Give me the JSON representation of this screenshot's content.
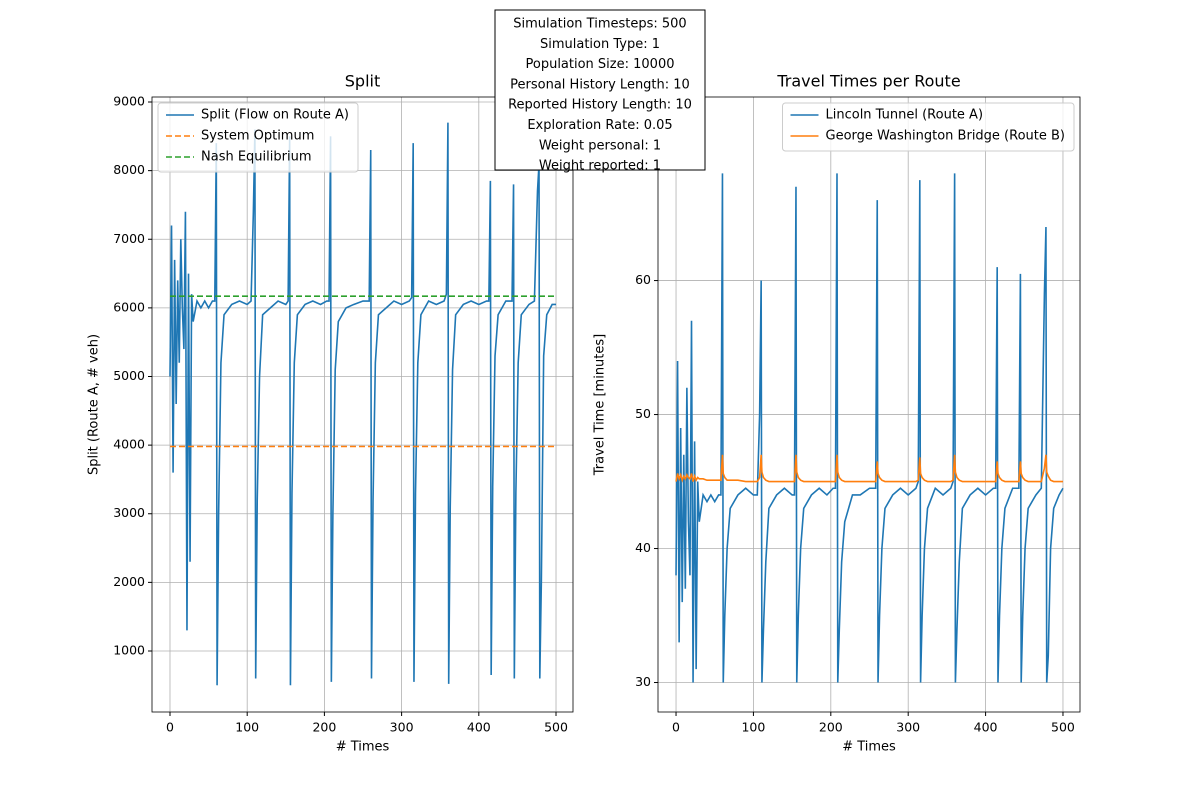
{
  "annotation_lines": [
    "Simulation Timesteps: 500",
    "Simulation Type: 1",
    "Population Size: 10000",
    "Personal History Length: 10",
    "Reported History Length: 10",
    "Exploration Rate: 0.05",
    "Weight personal: 1",
    "Weight reported: 1"
  ],
  "chart_data": [
    {
      "type": "line",
      "title": "Split",
      "xlabel": "# Times",
      "ylabel": "Split (Route A, # veh)",
      "xlim": [
        -23.3,
        522
      ],
      "ylim": [
        111,
        9073
      ],
      "xticks": [
        0,
        100,
        200,
        300,
        400,
        500
      ],
      "yticks": [
        1000,
        2000,
        3000,
        4000,
        5000,
        6000,
        7000,
        8000,
        9000
      ],
      "grid": true,
      "legend": "upper left",
      "x": [
        0,
        2,
        4,
        6,
        8,
        10,
        12,
        14,
        16,
        18,
        20,
        22,
        24,
        26,
        28,
        30,
        35,
        40,
        45,
        50,
        55,
        58,
        60,
        61,
        63,
        66,
        70,
        80,
        90,
        100,
        105,
        108,
        110,
        111,
        113,
        116,
        120,
        130,
        140,
        150,
        153,
        155,
        156,
        158,
        161,
        165,
        175,
        185,
        195,
        203,
        206,
        208,
        209,
        211,
        214,
        218,
        228,
        238,
        250,
        258,
        260,
        261,
        263,
        266,
        270,
        280,
        290,
        300,
        310,
        313,
        315,
        316,
        318,
        321,
        325,
        335,
        345,
        355,
        358,
        360,
        361,
        363,
        366,
        370,
        380,
        390,
        400,
        410,
        413,
        415,
        416,
        418,
        421,
        425,
        435,
        440,
        443,
        445,
        446,
        448,
        451,
        455,
        465,
        472,
        476,
        478,
        479,
        481,
        484,
        488,
        495,
        500
      ],
      "series": [
        {
          "name": "Split (Flow on Route A)",
          "color": "#1f77b4",
          "style": "solid",
          "values": [
            5000,
            7200,
            3600,
            6700,
            4600,
            6400,
            5200,
            7000,
            6000,
            5400,
            7400,
            1300,
            6500,
            2300,
            6200,
            5800,
            6100,
            6000,
            6100,
            6000,
            6100,
            6100,
            8400,
            500,
            3000,
            5200,
            5900,
            6050,
            6100,
            6050,
            6100,
            7400,
            8600,
            600,
            3200,
            5000,
            5900,
            6000,
            6100,
            6050,
            6100,
            8500,
            500,
            3300,
            5200,
            5900,
            6050,
            6100,
            6050,
            6100,
            6100,
            8500,
            550,
            3000,
            5100,
            5800,
            6000,
            6050,
            6100,
            6100,
            8300,
            600,
            3200,
            5200,
            5900,
            6000,
            6100,
            6050,
            6100,
            6150,
            8400,
            550,
            3300,
            5200,
            5900,
            6100,
            6050,
            6100,
            6200,
            8700,
            520,
            3100,
            5100,
            5900,
            6050,
            6100,
            6050,
            6100,
            6100,
            7850,
            650,
            3400,
            5300,
            5900,
            6100,
            6100,
            6100,
            7800,
            600,
            3300,
            5200,
            5900,
            6050,
            6100,
            7700,
            8100,
            600,
            2000,
            5300,
            5900,
            6050,
            6050
          ]
        },
        {
          "name": "System Optimum",
          "color": "#ff7f0e",
          "style": "dashed",
          "value": 3980
        },
        {
          "name": "Nash Equilibrium",
          "color": "#2ca02c",
          "style": "dashed",
          "value": 6170
        }
      ]
    },
    {
      "type": "line",
      "title": "Travel Times per Route",
      "xlabel": "# Times",
      "ylabel": "Travel Time [minutes]",
      "xlim": [
        -23.3,
        522
      ],
      "ylim": [
        27.8,
        73.7
      ],
      "xticks": [
        0,
        100,
        200,
        300,
        400,
        500
      ],
      "yticks": [
        30,
        40,
        50,
        60
      ],
      "grid": true,
      "legend": "upper right",
      "x": [
        0,
        2,
        4,
        6,
        8,
        10,
        12,
        14,
        16,
        18,
        20,
        22,
        24,
        26,
        28,
        30,
        35,
        40,
        45,
        50,
        55,
        58,
        60,
        61,
        63,
        66,
        70,
        80,
        90,
        100,
        105,
        108,
        110,
        111,
        113,
        116,
        120,
        130,
        140,
        150,
        153,
        155,
        156,
        158,
        161,
        165,
        175,
        185,
        195,
        203,
        206,
        208,
        209,
        211,
        214,
        218,
        228,
        238,
        250,
        258,
        260,
        261,
        263,
        266,
        270,
        280,
        290,
        300,
        310,
        313,
        315,
        316,
        318,
        321,
        325,
        335,
        345,
        355,
        358,
        360,
        361,
        363,
        366,
        370,
        380,
        390,
        400,
        410,
        413,
        415,
        416,
        418,
        421,
        425,
        435,
        440,
        443,
        445,
        446,
        448,
        451,
        455,
        465,
        472,
        476,
        478,
        479,
        481,
        484,
        488,
        495,
        500
      ],
      "series": [
        {
          "name": "Lincoln Tunnel (Route A)",
          "color": "#1f77b4",
          "style": "solid",
          "values": [
            38,
            54,
            33,
            49,
            36,
            47,
            37,
            52,
            42,
            38,
            57,
            30,
            48,
            31,
            45,
            42,
            44,
            43.5,
            44,
            43.5,
            44,
            44,
            68,
            30,
            35,
            40,
            43,
            44,
            44.5,
            44,
            44,
            50,
            60,
            30,
            34,
            39,
            43,
            44,
            44.5,
            44,
            44,
            67,
            30,
            35,
            40,
            43,
            44,
            44.5,
            44,
            44.5,
            44.5,
            68,
            30,
            34,
            39,
            42,
            44,
            44,
            44.5,
            44.5,
            66,
            30,
            35,
            40,
            43,
            44,
            44.5,
            44,
            44.5,
            45,
            67.5,
            30,
            35,
            40,
            43,
            44.5,
            44,
            44.5,
            45,
            68,
            30,
            34,
            39,
            43,
            44,
            44.5,
            44,
            44.5,
            44.5,
            61,
            30,
            35,
            40,
            43,
            44.5,
            44.5,
            44.5,
            60.5,
            30,
            35,
            40,
            43,
            44,
            44.5,
            59,
            64,
            30,
            32,
            40,
            43,
            44,
            44.5
          ]
        },
        {
          "name": "George Washington Bridge (Route B)",
          "color": "#ff7f0e",
          "style": "solid",
          "values": [
            45,
            45.6,
            45.2,
            45.5,
            45.1,
            45.4,
            45.2,
            45.5,
            45.3,
            45.2,
            45.6,
            45.0,
            45.4,
            45.1,
            45.3,
            45.2,
            45.2,
            45.1,
            45.1,
            45.1,
            45.1,
            45.1,
            47,
            45.6,
            45.3,
            45.1,
            45.1,
            45.1,
            45.0,
            45.0,
            45.0,
            45.3,
            47,
            45.7,
            45.3,
            45.1,
            45.0,
            45.0,
            45.0,
            45.0,
            45.0,
            47,
            45.7,
            45.3,
            45.1,
            45.0,
            45.0,
            45.0,
            45.0,
            45.0,
            45.0,
            47,
            45.7,
            45.3,
            45.1,
            45.0,
            45.0,
            45.0,
            45.0,
            45.0,
            46.5,
            45.6,
            45.3,
            45.1,
            45.0,
            45.0,
            45.0,
            45.0,
            45.0,
            45.1,
            46.8,
            45.6,
            45.3,
            45.1,
            45.0,
            45.0,
            45.0,
            45.0,
            45.1,
            47,
            45.7,
            45.3,
            45.1,
            45.0,
            45.0,
            45.0,
            45.0,
            45.0,
            45.0,
            46.5,
            45.6,
            45.3,
            45.1,
            45.0,
            45.0,
            45.0,
            45.0,
            46.5,
            45.6,
            45.3,
            45.1,
            45.0,
            45.0,
            45.0,
            46,
            47,
            45.7,
            45.4,
            45.1,
            45.0,
            45.0,
            45.0
          ]
        }
      ]
    }
  ]
}
